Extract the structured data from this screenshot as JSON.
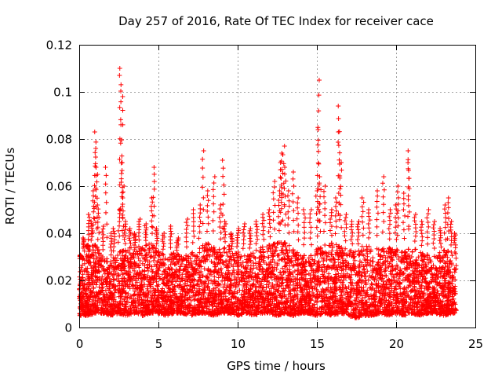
{
  "chart_data": {
    "type": "scatter",
    "title": "Day 257 of 2016, Rate Of TEC Index for receiver cace",
    "xlabel": "GPS time / hours",
    "ylabel": "ROTI / TECUs",
    "xlim": [
      0,
      25
    ],
    "ylim": [
      0,
      0.12
    ],
    "xticks": [
      0,
      5,
      10,
      15,
      20,
      25
    ],
    "xtick_labels": [
      "0",
      "5",
      "10",
      "15",
      "20",
      "25"
    ],
    "yticks": [
      0,
      0.02,
      0.04,
      0.06,
      0.08,
      0.1,
      0.12
    ],
    "ytick_labels": [
      "0",
      "0.02",
      "0.04",
      "0.06",
      "0.08",
      "0.1",
      "0.12"
    ],
    "grid": true,
    "marker": "+",
    "series": [
      {
        "name": "ROTI",
        "color": "#ff0000",
        "x": [
          0.1,
          0.3,
          0.5,
          0.6,
          0.8,
          0.9,
          1.0,
          1.0,
          1.1,
          1.2,
          1.5,
          1.7,
          2.0,
          2.2,
          2.5,
          2.6,
          2.6,
          2.7,
          2.7,
          2.8,
          2.9,
          3.2,
          3.5,
          3.8,
          4.2,
          4.6,
          4.7,
          4.9,
          5.3,
          5.8,
          6.2,
          6.8,
          7.2,
          7.6,
          7.8,
          8.1,
          8.5,
          8.9,
          9.1,
          9.2,
          9.6,
          10.0,
          10.4,
          10.8,
          11.2,
          11.6,
          12.0,
          12.3,
          12.6,
          12.7,
          12.8,
          12.9,
          13.0,
          13.2,
          13.5,
          13.8,
          14.2,
          14.6,
          15.0,
          15.1,
          15.1,
          15.2,
          15.5,
          15.9,
          16.2,
          16.4,
          16.4,
          16.5,
          16.8,
          17.2,
          17.6,
          17.9,
          18.3,
          18.8,
          19.2,
          19.6,
          20.0,
          20.1,
          20.5,
          20.8,
          20.8,
          21.2,
          21.6,
          22.0,
          22.4,
          22.8,
          23.1,
          23.3,
          23.5,
          23.7
        ],
        "y": [
          0.03,
          0.038,
          0.035,
          0.048,
          0.045,
          0.058,
          0.083,
          0.076,
          0.068,
          0.052,
          0.043,
          0.068,
          0.04,
          0.042,
          0.05,
          0.11,
          0.107,
          0.098,
          0.07,
          0.06,
          0.045,
          0.042,
          0.04,
          0.046,
          0.044,
          0.055,
          0.068,
          0.042,
          0.04,
          0.043,
          0.038,
          0.046,
          0.05,
          0.052,
          0.075,
          0.058,
          0.064,
          0.052,
          0.071,
          0.045,
          0.04,
          0.042,
          0.044,
          0.042,
          0.045,
          0.048,
          0.05,
          0.062,
          0.058,
          0.07,
          0.074,
          0.077,
          0.068,
          0.058,
          0.066,
          0.055,
          0.05,
          0.05,
          0.058,
          0.105,
          0.084,
          0.064,
          0.06,
          0.05,
          0.055,
          0.094,
          0.083,
          0.07,
          0.048,
          0.045,
          0.045,
          0.055,
          0.05,
          0.058,
          0.064,
          0.05,
          0.052,
          0.06,
          0.057,
          0.075,
          0.07,
          0.048,
          0.045,
          0.05,
          0.045,
          0.042,
          0.052,
          0.055,
          0.045,
          0.04
        ],
        "baseline": {
          "x": [
            0,
            0.5,
            1,
            1.5,
            2,
            2.5,
            3,
            3.5,
            4,
            4.5,
            5,
            5.5,
            6,
            6.5,
            7,
            7.5,
            8,
            8.5,
            9,
            9.5,
            10,
            10.5,
            11,
            11.5,
            12,
            12.5,
            13,
            13.5,
            14,
            14.5,
            15,
            15.5,
            16,
            16.5,
            17,
            17.5,
            18,
            18.5,
            19,
            19.5,
            20,
            20.5,
            21,
            21.5,
            22,
            22.5,
            23,
            23.5
          ],
          "y_min": [
            0.005,
            0.005,
            0.006,
            0.006,
            0.005,
            0.006,
            0.005,
            0.006,
            0.005,
            0.006,
            0.006,
            0.005,
            0.006,
            0.006,
            0.005,
            0.006,
            0.006,
            0.005,
            0.006,
            0.006,
            0.005,
            0.006,
            0.005,
            0.006,
            0.006,
            0.005,
            0.006,
            0.005,
            0.006,
            0.006,
            0.005,
            0.006,
            0.005,
            0.006,
            0.005,
            0.004,
            0.005,
            0.005,
            0.006,
            0.005,
            0.006,
            0.005,
            0.006,
            0.005,
            0.006,
            0.006,
            0.005,
            0.006
          ],
          "y_max": [
            0.03,
            0.034,
            0.035,
            0.03,
            0.028,
            0.032,
            0.033,
            0.035,
            0.034,
            0.036,
            0.033,
            0.03,
            0.032,
            0.03,
            0.031,
            0.033,
            0.036,
            0.034,
            0.033,
            0.035,
            0.032,
            0.03,
            0.032,
            0.034,
            0.035,
            0.036,
            0.036,
            0.033,
            0.031,
            0.03,
            0.033,
            0.035,
            0.036,
            0.034,
            0.033,
            0.032,
            0.035,
            0.034,
            0.033,
            0.034,
            0.033,
            0.032,
            0.034,
            0.032,
            0.031,
            0.03,
            0.033,
            0.032
          ]
        }
      }
    ]
  }
}
